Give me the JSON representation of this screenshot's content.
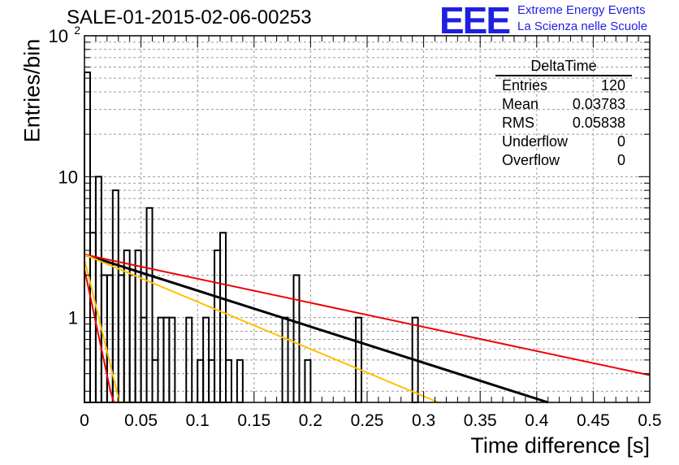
{
  "title": "SALE-01-2015-02-06-00253",
  "logo": {
    "mark": "EEE",
    "line1": "Extreme Energy Events",
    "line2": "La Scienza nelle Scuole"
  },
  "stats": {
    "name": "DeltaTime",
    "rows": [
      {
        "label": "Entries",
        "value": "120"
      },
      {
        "label": "Mean",
        "value": "0.03783"
      },
      {
        "label": "RMS",
        "value": "0.05838"
      },
      {
        "label": "Underflow",
        "value": "0"
      },
      {
        "label": "Overflow",
        "value": "0"
      }
    ]
  },
  "chart_data": {
    "type": "histogram",
    "xlabel": "Time difference [s]",
    "ylabel": "Entries/bin",
    "xlim": [
      0,
      0.5
    ],
    "ylim": [
      0.25,
      100
    ],
    "yscale": "log",
    "grid": true,
    "xticks": [
      "0",
      "0.05",
      "0.1",
      "0.15",
      "0.2",
      "0.25",
      "0.3",
      "0.35",
      "0.4",
      "0.45",
      "0.5"
    ],
    "yticks": [
      {
        "value": 1,
        "label": "1"
      },
      {
        "value": 10,
        "label": "10"
      },
      {
        "value": 100,
        "label": "10",
        "exp": "2"
      }
    ],
    "bin_width": 0.005,
    "bins": [
      {
        "x": 0.0,
        "y": 55
      },
      {
        "x": 0.005,
        "y": 4
      },
      {
        "x": 0.01,
        "y": 10
      },
      {
        "x": 0.015,
        "y": 2
      },
      {
        "x": 0.02,
        "y": 2
      },
      {
        "x": 0.025,
        "y": 8
      },
      {
        "x": 0.03,
        "y": 2
      },
      {
        "x": 0.035,
        "y": 3
      },
      {
        "x": 0.04,
        "y": 2
      },
      {
        "x": 0.045,
        "y": 3
      },
      {
        "x": 0.05,
        "y": 1
      },
      {
        "x": 0.055,
        "y": 6
      },
      {
        "x": 0.06,
        "y": 0.5
      },
      {
        "x": 0.065,
        "y": 1
      },
      {
        "x": 0.07,
        "y": 1
      },
      {
        "x": 0.075,
        "y": 1
      },
      {
        "x": 0.09,
        "y": 1
      },
      {
        "x": 0.1,
        "y": 0.5
      },
      {
        "x": 0.105,
        "y": 1
      },
      {
        "x": 0.11,
        "y": 0.5
      },
      {
        "x": 0.115,
        "y": 3
      },
      {
        "x": 0.12,
        "y": 4
      },
      {
        "x": 0.125,
        "y": 0.5
      },
      {
        "x": 0.135,
        "y": 0.5
      },
      {
        "x": 0.175,
        "y": 1
      },
      {
        "x": 0.185,
        "y": 2
      },
      {
        "x": 0.195,
        "y": 0.5
      },
      {
        "x": 0.24,
        "y": 1
      },
      {
        "x": 0.29,
        "y": 1
      }
    ],
    "series": [
      {
        "color": "#000000",
        "kind": "line",
        "points": [
          [
            0.0,
            2.8
          ],
          [
            0.41,
            0.25
          ]
        ]
      },
      {
        "color": "#ee0000",
        "kind": "line",
        "points": [
          [
            0.0,
            2.8
          ],
          [
            0.5,
            0.39
          ]
        ]
      },
      {
        "color": "#ffc000",
        "kind": "line",
        "points": [
          [
            0.0,
            2.8
          ],
          [
            0.313,
            0.25
          ]
        ]
      },
      {
        "color": "#ee0000",
        "kind": "line",
        "points": [
          [
            0.0,
            2.2
          ],
          [
            0.023,
            0.3
          ],
          [
            0.026,
            0.25
          ]
        ]
      },
      {
        "color": "#ffc000",
        "kind": "line",
        "points": [
          [
            0.0,
            2.6
          ],
          [
            0.031,
            0.25
          ]
        ]
      }
    ]
  }
}
